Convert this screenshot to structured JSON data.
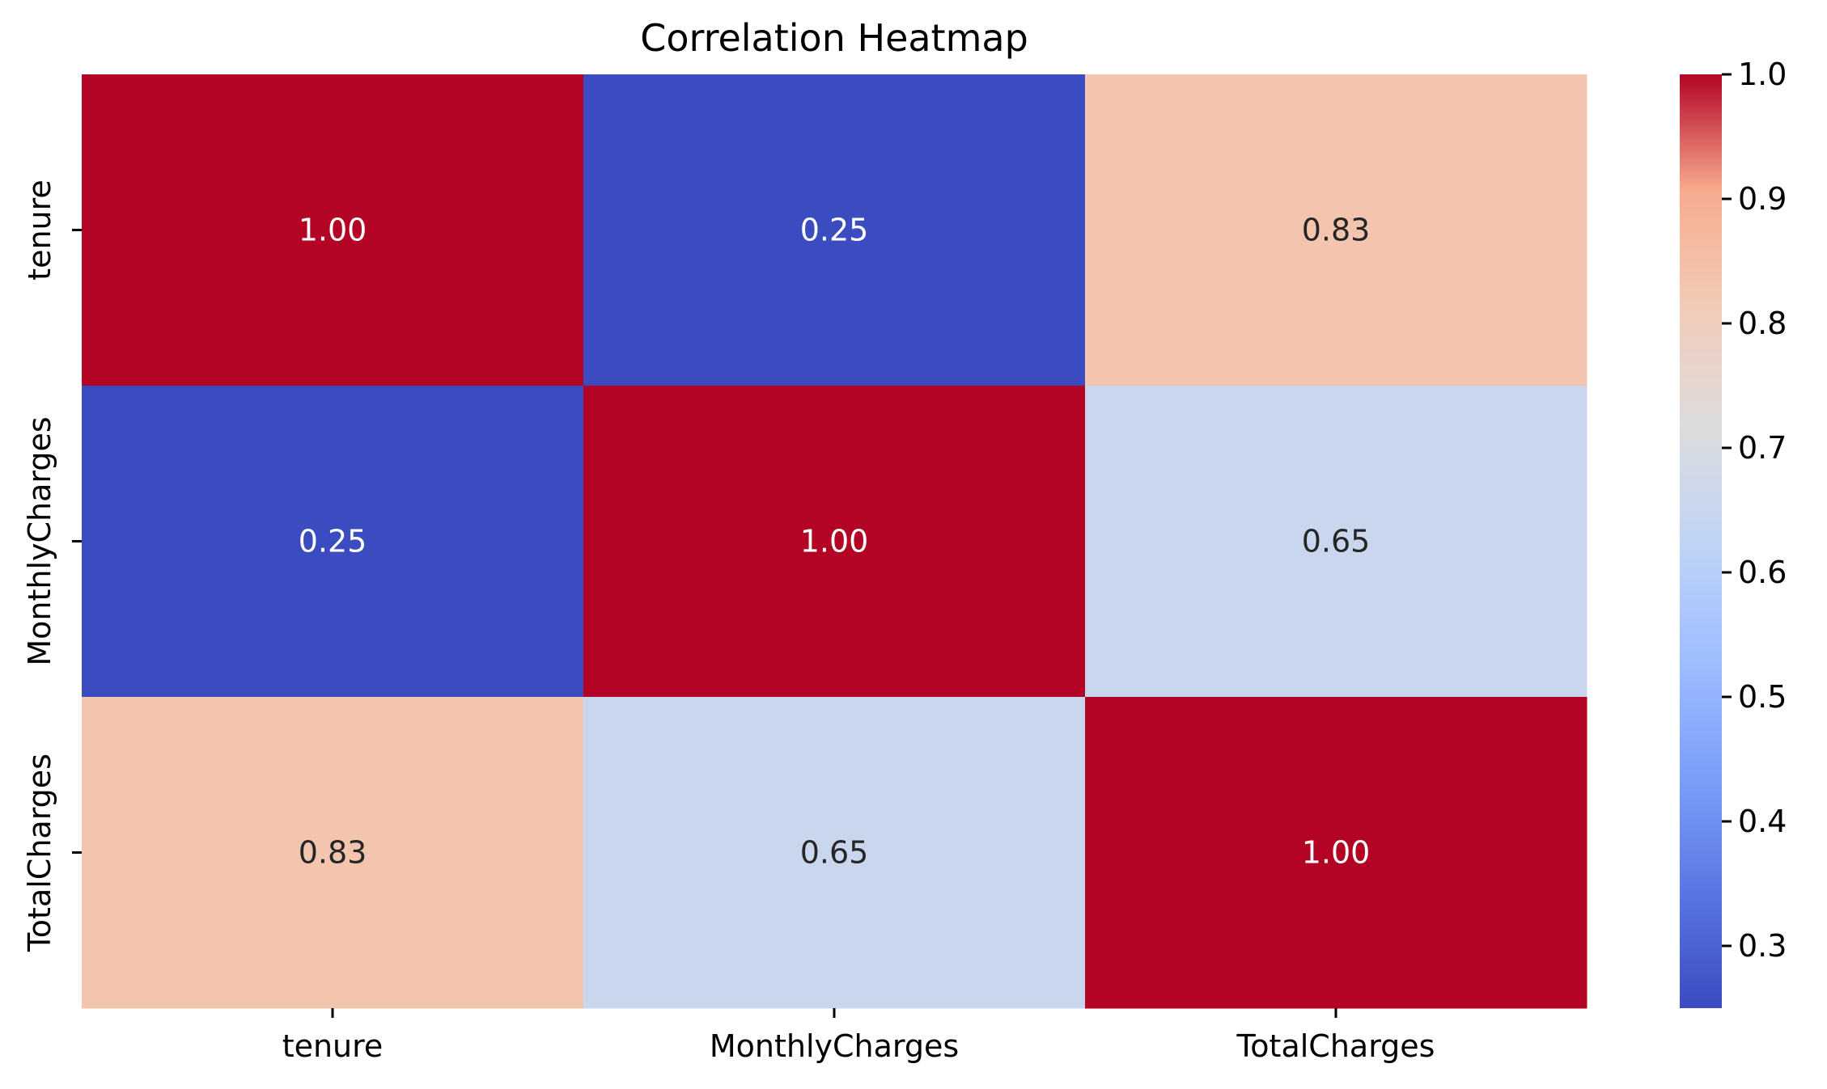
{
  "chart_data": {
    "type": "heatmap",
    "title": "Correlation Heatmap",
    "xlabel": "",
    "ylabel": "",
    "x_categories": [
      "tenure",
      "MonthlyCharges",
      "TotalCharges"
    ],
    "y_categories": [
      "tenure",
      "MonthlyCharges",
      "TotalCharges"
    ],
    "values": [
      [
        1.0,
        0.25,
        0.83
      ],
      [
        0.25,
        1.0,
        0.65
      ],
      [
        0.83,
        0.65,
        1.0
      ]
    ],
    "annotations": [
      [
        "1.00",
        "0.25",
        "0.83"
      ],
      [
        "0.25",
        "1.00",
        "0.65"
      ],
      [
        "0.83",
        "0.65",
        "1.00"
      ]
    ],
    "colormap": "coolwarm",
    "color_range": [
      0.25,
      1.0
    ],
    "colorbar": {
      "ticks": [
        0.3,
        0.4,
        0.5,
        0.6,
        0.7,
        0.8,
        0.9,
        1.0
      ],
      "tick_labels": [
        "0.3",
        "0.4",
        "0.5",
        "0.6",
        "0.7",
        "0.8",
        "0.9",
        "1.0"
      ]
    },
    "grid": false,
    "legend": "colorbar-right"
  }
}
